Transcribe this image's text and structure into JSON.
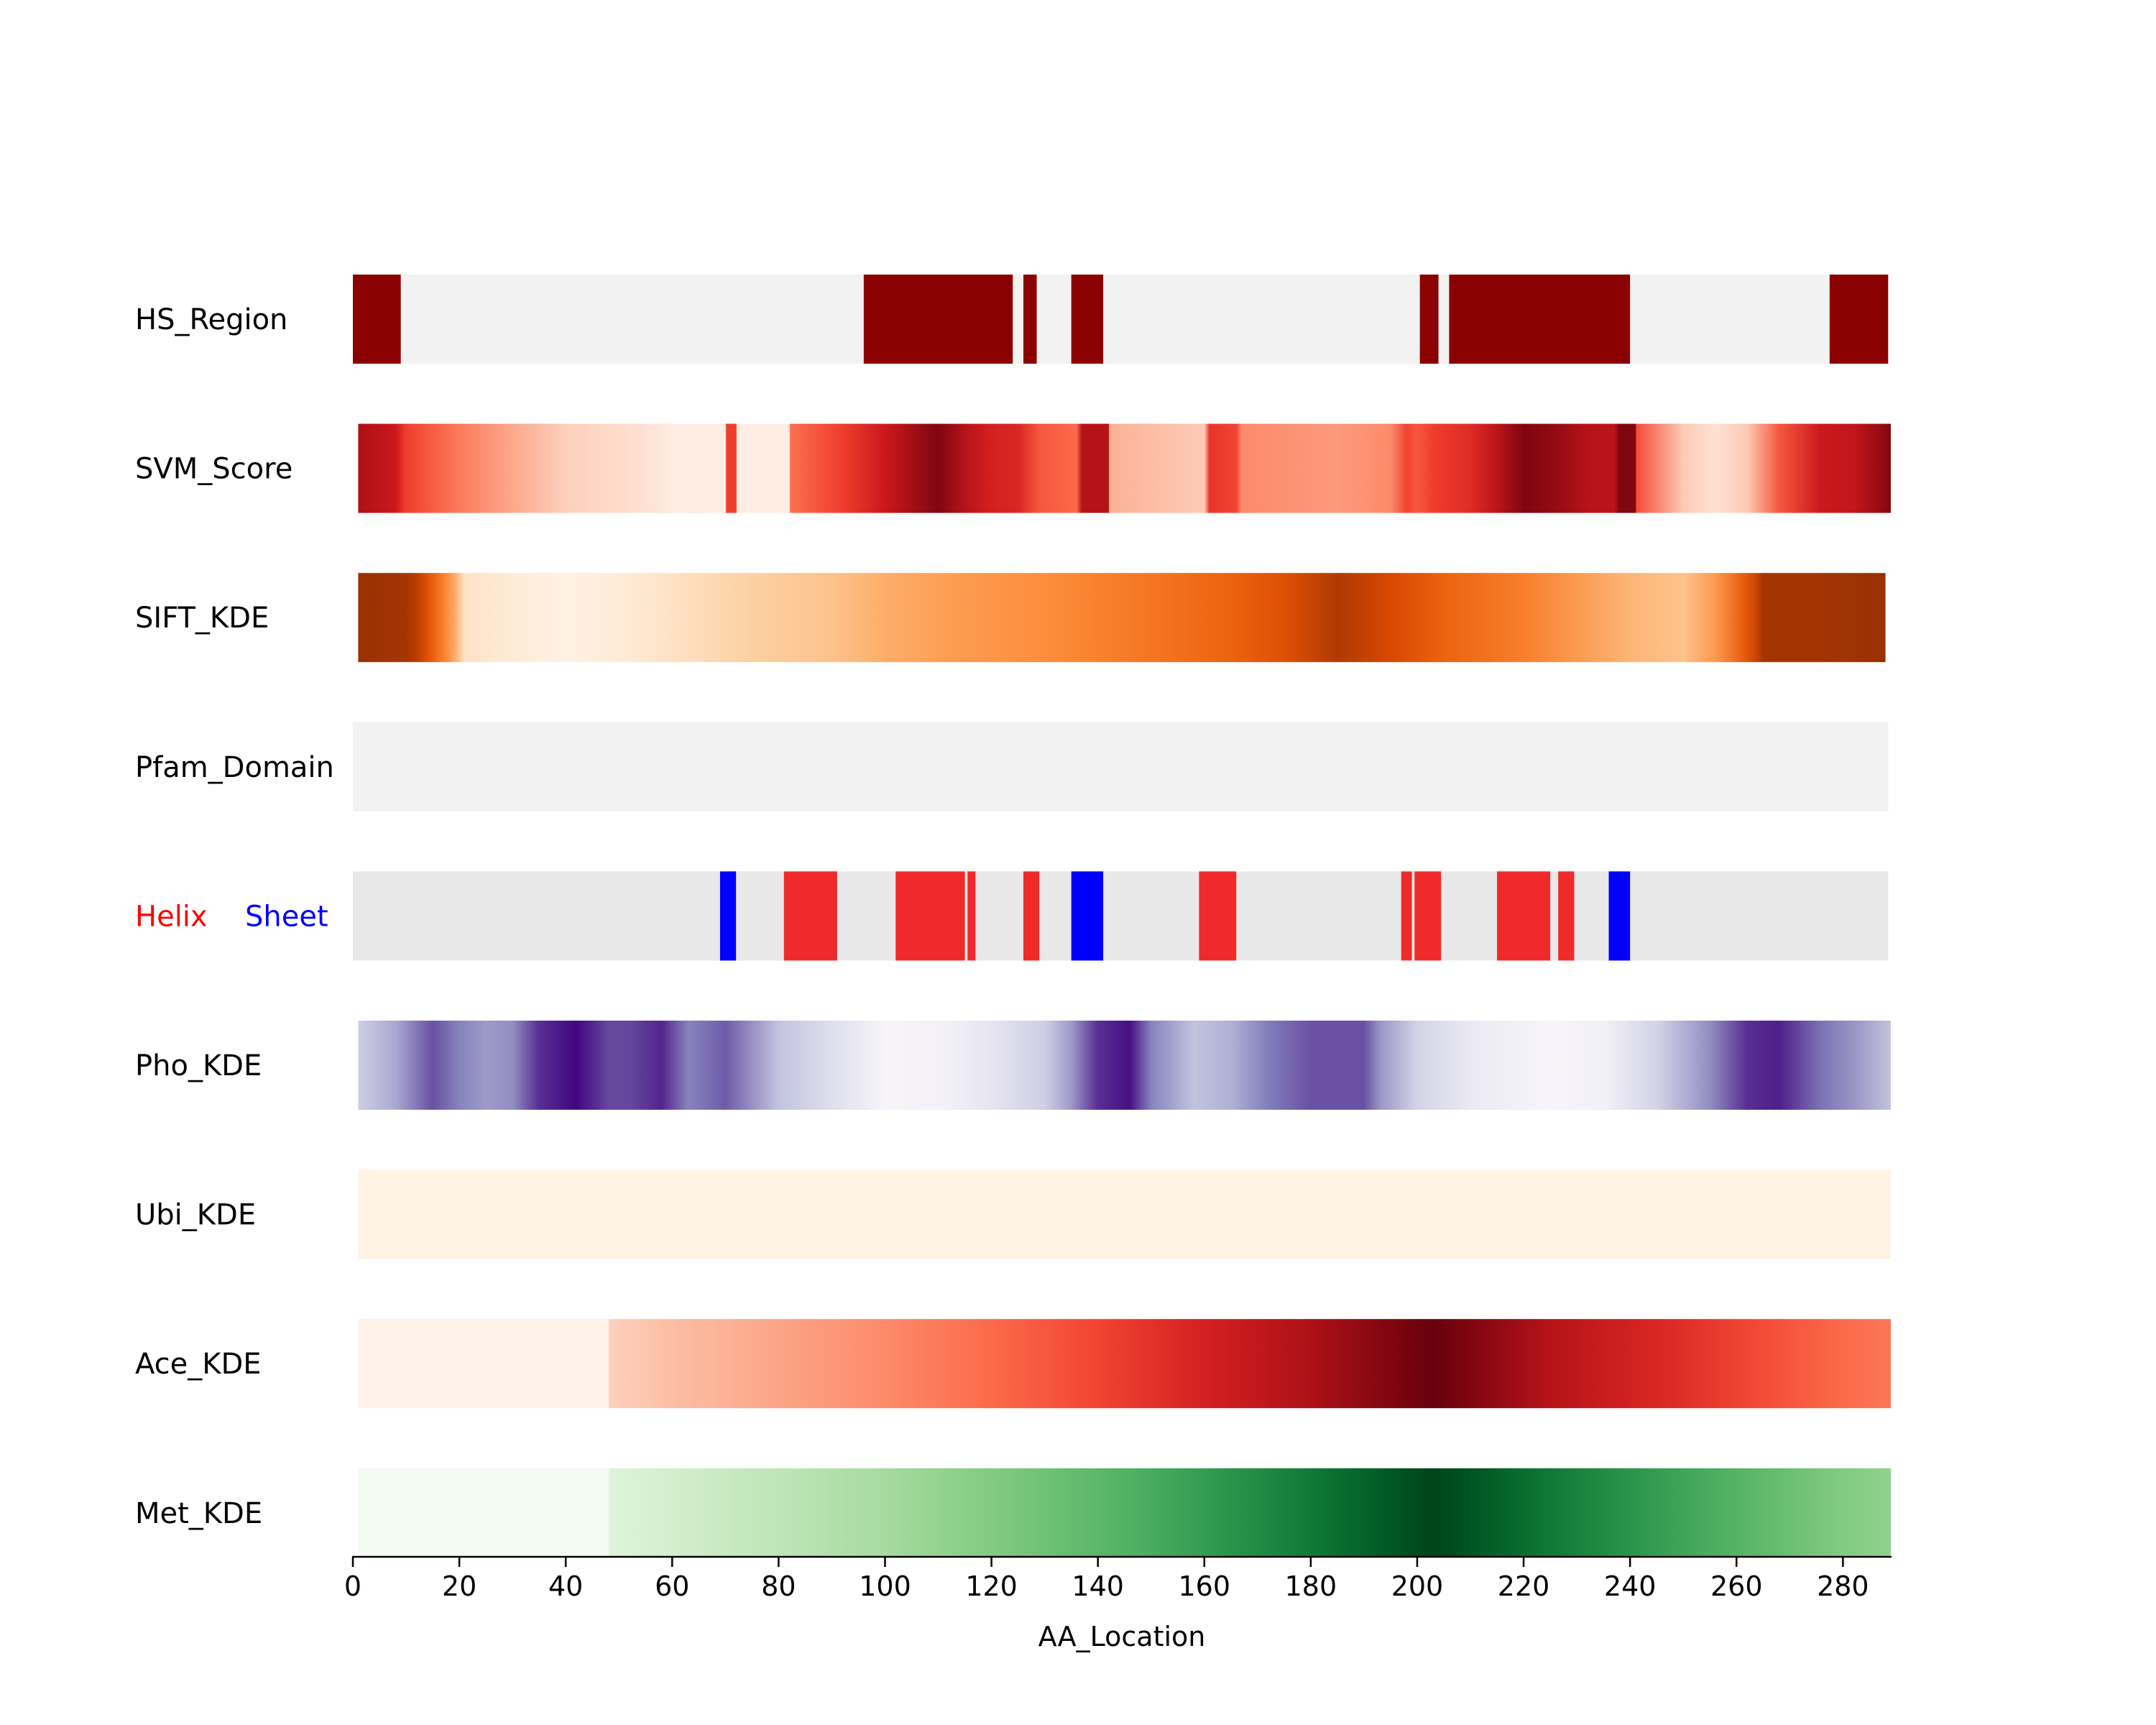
{
  "chart_data": {
    "type": "heatmap",
    "title": "",
    "xlabel": "AA_Location",
    "ylabel": "",
    "xlim": [
      0,
      289
    ],
    "x_ticks": [
      0,
      20,
      40,
      60,
      80,
      100,
      120,
      140,
      160,
      180,
      200,
      220,
      240,
      260,
      280
    ],
    "x_tick_labels": [
      "0",
      "20",
      "40",
      "60",
      "80",
      "100",
      "120",
      "140",
      "160",
      "180",
      "200",
      "220",
      "240",
      "260",
      "280"
    ],
    "legend": {
      "placement": "left of secondary-structure track",
      "entries": [
        {
          "label": "Helix",
          "color": "#ff0000"
        },
        {
          "label": "Sheet",
          "color": "#0000ff"
        }
      ]
    },
    "tracks": [
      {
        "name": "HS_Region",
        "kind": "binary",
        "background": "#f2f2f2",
        "fill": "#8b0000",
        "segments": [
          [
            0,
            9
          ],
          [
            96,
            124
          ],
          [
            126,
            128.5
          ],
          [
            135,
            141
          ],
          [
            200.5,
            204
          ],
          [
            206,
            240
          ],
          [
            277.5,
            288.5
          ]
        ]
      },
      {
        "name": "SVM_Score",
        "kind": "gradient",
        "cmap": "reds",
        "range": [
          1,
          289
        ],
        "stops": [
          [
            1,
            0.85
          ],
          [
            8,
            0.75
          ],
          [
            10,
            0.62
          ],
          [
            14,
            0.55
          ],
          [
            20,
            0.45
          ],
          [
            29,
            0.32
          ],
          [
            40,
            0.18
          ],
          [
            55,
            0.12
          ],
          [
            60,
            0.06
          ],
          [
            70,
            0.05
          ],
          [
            70.2,
            0.62
          ],
          [
            72,
            0.62
          ],
          [
            72.2,
            0.05
          ],
          [
            82,
            0.05
          ],
          [
            82.2,
            0.48
          ],
          [
            92,
            0.62
          ],
          [
            100,
            0.75
          ],
          [
            104,
            0.85
          ],
          [
            110,
            0.95
          ],
          [
            115,
            0.82
          ],
          [
            120,
            0.72
          ],
          [
            125,
            0.7
          ],
          [
            129,
            0.55
          ],
          [
            136,
            0.5
          ],
          [
            137,
            0.82
          ],
          [
            142,
            0.82
          ],
          [
            142.2,
            0.28
          ],
          [
            155,
            0.22
          ],
          [
            160,
            0.2
          ],
          [
            161,
            0.65
          ],
          [
            166,
            0.6
          ],
          [
            167,
            0.4
          ],
          [
            185,
            0.35
          ],
          [
            195,
            0.4
          ],
          [
            198,
            0.6
          ],
          [
            200,
            0.55
          ],
          [
            203,
            0.62
          ],
          [
            210,
            0.68
          ],
          [
            215,
            0.8
          ],
          [
            220,
            0.95
          ],
          [
            225,
            0.92
          ],
          [
            232,
            0.82
          ],
          [
            237,
            0.8
          ],
          [
            238,
            0.95
          ],
          [
            241,
            0.95
          ],
          [
            241.2,
            0.58
          ],
          [
            250,
            0.2
          ],
          [
            256,
            0.12
          ],
          [
            262,
            0.2
          ],
          [
            268,
            0.55
          ],
          [
            276,
            0.75
          ],
          [
            282,
            0.78
          ],
          [
            287,
            0.9
          ],
          [
            289,
            0.95
          ]
        ]
      },
      {
        "name": "SIFT_KDE",
        "kind": "gradient",
        "cmap": "oranges",
        "range": [
          1,
          288
        ],
        "stops": [
          [
            1,
            0.92
          ],
          [
            10,
            0.88
          ],
          [
            12,
            0.82
          ],
          [
            14,
            0.72
          ],
          [
            17,
            0.55
          ],
          [
            19,
            0.4
          ],
          [
            21,
            0.15
          ],
          [
            30,
            0.08
          ],
          [
            40,
            0.03
          ],
          [
            50,
            0.08
          ],
          [
            60,
            0.15
          ],
          [
            75,
            0.25
          ],
          [
            90,
            0.3
          ],
          [
            100,
            0.38
          ],
          [
            115,
            0.45
          ],
          [
            130,
            0.5
          ],
          [
            150,
            0.58
          ],
          [
            165,
            0.65
          ],
          [
            175,
            0.72
          ],
          [
            185,
            0.85
          ],
          [
            195,
            0.75
          ],
          [
            205,
            0.65
          ],
          [
            220,
            0.55
          ],
          [
            240,
            0.35
          ],
          [
            250,
            0.3
          ],
          [
            256,
            0.45
          ],
          [
            262,
            0.7
          ],
          [
            264,
            0.8
          ],
          [
            265,
            0.88
          ],
          [
            275,
            0.88
          ],
          [
            288,
            0.92
          ]
        ]
      },
      {
        "name": "Pfam_Domain",
        "kind": "binary",
        "background": "#f2f2f2",
        "fill": "#8b0000",
        "segments": []
      },
      {
        "name": "Helix/Sheet",
        "kind": "categorical",
        "background": "#e8e8e8",
        "segments": [
          {
            "start": 69,
            "end": 72,
            "type": "Sheet"
          },
          {
            "start": 81,
            "end": 91,
            "type": "Helix"
          },
          {
            "start": 102,
            "end": 115,
            "type": "Helix"
          },
          {
            "start": 115.5,
            "end": 117,
            "type": "Helix"
          },
          {
            "start": 126,
            "end": 129,
            "type": "Helix"
          },
          {
            "start": 135,
            "end": 141,
            "type": "Sheet"
          },
          {
            "start": 159,
            "end": 166,
            "type": "Helix"
          },
          {
            "start": 197,
            "end": 199,
            "type": "Helix"
          },
          {
            "start": 199.5,
            "end": 204.5,
            "type": "Helix"
          },
          {
            "start": 215,
            "end": 225,
            "type": "Helix"
          },
          {
            "start": 226.5,
            "end": 229.5,
            "type": "Helix"
          },
          {
            "start": 236,
            "end": 240,
            "type": "Sheet"
          }
        ]
      },
      {
        "name": "Pho_KDE",
        "kind": "gradient",
        "cmap": "purples",
        "range": [
          1,
          289
        ],
        "stops": [
          [
            1,
            0.3
          ],
          [
            8,
            0.45
          ],
          [
            15,
            0.75
          ],
          [
            20,
            0.6
          ],
          [
            25,
            0.5
          ],
          [
            30,
            0.55
          ],
          [
            35,
            0.85
          ],
          [
            42,
            0.98
          ],
          [
            48,
            0.78
          ],
          [
            52,
            0.78
          ],
          [
            58,
            0.88
          ],
          [
            63,
            0.6
          ],
          [
            70,
            0.72
          ],
          [
            80,
            0.35
          ],
          [
            90,
            0.22
          ],
          [
            100,
            0.06
          ],
          [
            110,
            0.08
          ],
          [
            120,
            0.18
          ],
          [
            130,
            0.3
          ],
          [
            135,
            0.5
          ],
          [
            140,
            0.85
          ],
          [
            146,
            0.95
          ],
          [
            150,
            0.6
          ],
          [
            158,
            0.35
          ],
          [
            165,
            0.42
          ],
          [
            172,
            0.62
          ],
          [
            180,
            0.75
          ],
          [
            190,
            0.75
          ],
          [
            193,
            0.52
          ],
          [
            200,
            0.28
          ],
          [
            210,
            0.15
          ],
          [
            225,
            0.05
          ],
          [
            235,
            0.1
          ],
          [
            245,
            0.28
          ],
          [
            255,
            0.55
          ],
          [
            262,
            0.85
          ],
          [
            268,
            0.9
          ],
          [
            276,
            0.65
          ],
          [
            283,
            0.5
          ],
          [
            289,
            0.35
          ]
        ]
      },
      {
        "name": "Ubi_KDE",
        "kind": "gradient",
        "cmap": "oranges",
        "range": [
          1,
          289
        ],
        "stops": [
          [
            1,
            0.02
          ],
          [
            289,
            0.02
          ]
        ]
      },
      {
        "name": "Ace_KDE",
        "kind": "gradient",
        "cmap": "reds",
        "range": [
          1,
          289
        ],
        "stops": [
          [
            1,
            0.02
          ],
          [
            48,
            0.02
          ],
          [
            48.2,
            0.18
          ],
          [
            60,
            0.24
          ],
          [
            80,
            0.32
          ],
          [
            100,
            0.4
          ],
          [
            120,
            0.5
          ],
          [
            140,
            0.6
          ],
          [
            160,
            0.72
          ],
          [
            180,
            0.85
          ],
          [
            195,
            0.95
          ],
          [
            203,
            1.0
          ],
          [
            210,
            0.95
          ],
          [
            225,
            0.82
          ],
          [
            245,
            0.7
          ],
          [
            265,
            0.58
          ],
          [
            280,
            0.5
          ],
          [
            289,
            0.46
          ]
        ]
      },
      {
        "name": "Met_KDE",
        "kind": "gradient",
        "cmap": "greens",
        "range": [
          1,
          289
        ],
        "stops": [
          [
            1,
            0.02
          ],
          [
            48,
            0.02
          ],
          [
            48.2,
            0.15
          ],
          [
            60,
            0.2
          ],
          [
            80,
            0.28
          ],
          [
            100,
            0.36
          ],
          [
            120,
            0.46
          ],
          [
            140,
            0.56
          ],
          [
            160,
            0.68
          ],
          [
            180,
            0.82
          ],
          [
            195,
            0.94
          ],
          [
            203,
            1.0
          ],
          [
            210,
            0.95
          ],
          [
            225,
            0.82
          ],
          [
            245,
            0.68
          ],
          [
            265,
            0.55
          ],
          [
            280,
            0.46
          ],
          [
            289,
            0.42
          ]
        ]
      }
    ]
  }
}
